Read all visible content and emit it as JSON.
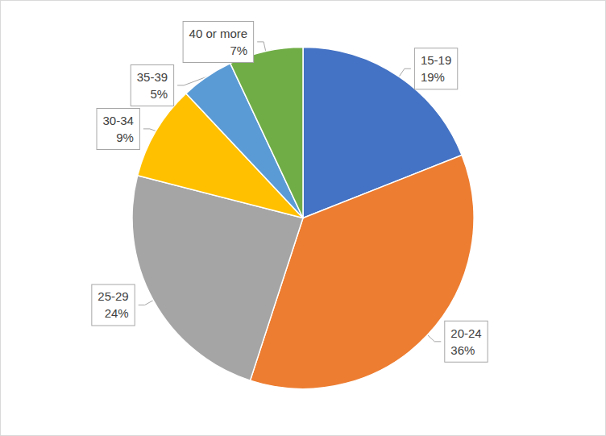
{
  "chart_data": {
    "type": "pie",
    "categories": [
      "15-19",
      "20-24",
      "25-29",
      "30-34",
      "35-39",
      "40 or more"
    ],
    "values": [
      19,
      36,
      24,
      9,
      5,
      7
    ],
    "value_labels": [
      "19%",
      "36%",
      "24%",
      "9%",
      "5%",
      "7%"
    ],
    "colors": [
      "#4472c4",
      "#ed7d31",
      "#a5a5a5",
      "#ffc000",
      "#5b9bd5",
      "#70ad47"
    ],
    "data_labels": true
  }
}
